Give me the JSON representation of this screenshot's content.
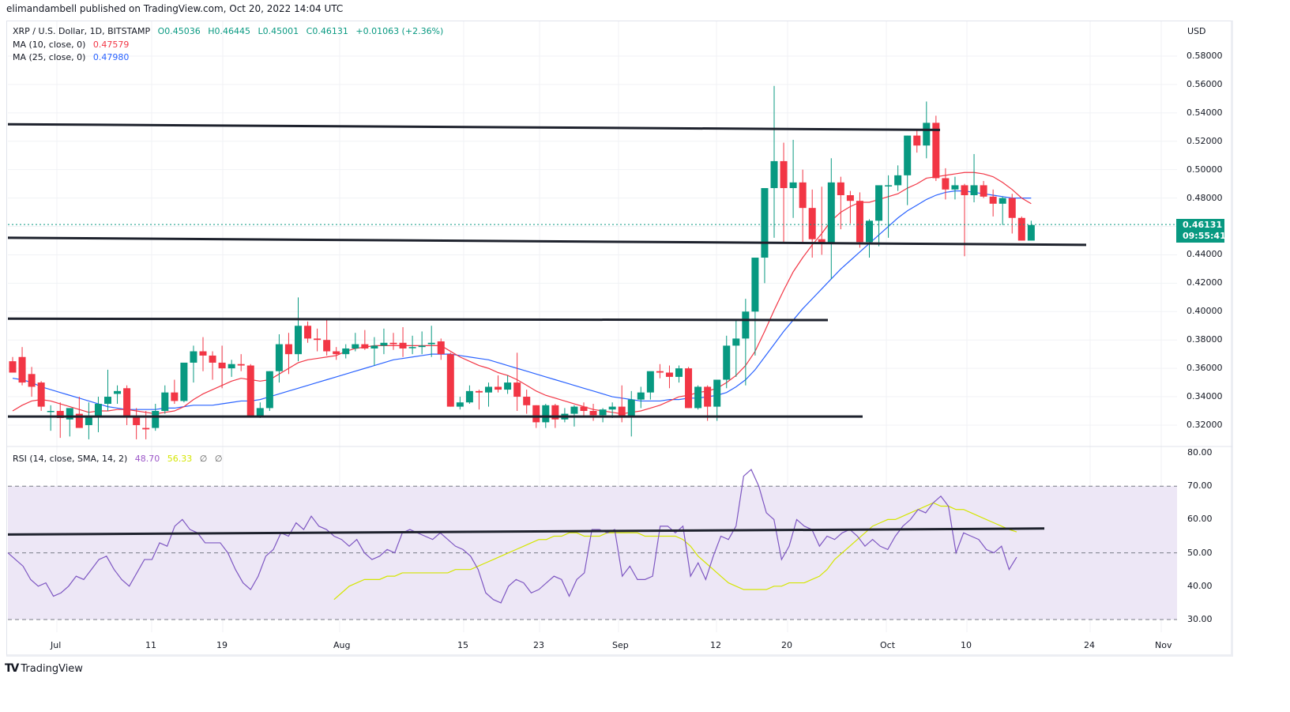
{
  "header": {
    "published": "elimandambell published on TradingView.com, Oct 20, 2022 14:04 UTC"
  },
  "legend": {
    "symbol": "XRP / U.S. Dollar, 1D, BITSTAMP",
    "open_label": "O",
    "open": "0.45036",
    "high_label": "H",
    "high": "0.46445",
    "low_label": "L",
    "low": "0.45001",
    "close_label": "C",
    "close": "0.46131",
    "change": "+0.01063 (+2.36%)",
    "ma10_label": "MA (10, close, 0)",
    "ma10_value": "0.47579",
    "ma25_label": "MA (25, close, 0)",
    "ma25_value": "0.47980",
    "rsi_label": "RSI (14, close, SMA, 14, 2)",
    "rsi_value": "48.70",
    "rsi_sma_value": "56.33",
    "rsi_extra1": "∅",
    "rsi_extra2": "∅"
  },
  "price_axis": {
    "currency": "USD",
    "ticks": [
      "0.58000",
      "0.56000",
      "0.54000",
      "0.52000",
      "0.50000",
      "0.48000",
      "0.44000",
      "0.42000",
      "0.40000",
      "0.38000",
      "0.36000",
      "0.34000",
      "0.32000"
    ],
    "last_price": "0.46131",
    "countdown": "09:55:41"
  },
  "rsi_axis": {
    "ticks": [
      "80.00",
      "70.00",
      "60.00",
      "50.00",
      "40.00",
      "30.00"
    ]
  },
  "time_axis": {
    "labels": [
      "Jul",
      "11",
      "19",
      "Aug",
      "15",
      "23",
      "Sep",
      "12",
      "20",
      "Oct",
      "10",
      "24",
      "Nov"
    ]
  },
  "footer": {
    "brand": "TradingView",
    "logo_mark": "TV"
  },
  "colors": {
    "up": "#089981",
    "down": "#f23645",
    "ma10": "#f23645",
    "ma25": "#2962ff",
    "rsi": "#7e57c2",
    "rsi_sma": "#d4e600",
    "rsi_band": "#ede7f6",
    "trendline": "#1e222d"
  },
  "chart_data": {
    "type": "candlestick",
    "title": "XRP / U.S. Dollar, 1D, BITSTAMP",
    "ylabel": "USD",
    "ylim": [
      0.31,
      0.59
    ],
    "x_start": "2022-06-26",
    "x_end": "2022-10-20",
    "ohlc": [
      [
        0.365,
        0.368,
        0.357,
        0.357
      ],
      [
        0.368,
        0.375,
        0.348,
        0.35
      ],
      [
        0.356,
        0.361,
        0.34,
        0.347
      ],
      [
        0.35,
        0.351,
        0.33,
        0.333
      ],
      [
        0.33,
        0.334,
        0.316,
        0.33
      ],
      [
        0.33,
        0.336,
        0.311,
        0.325
      ],
      [
        0.324,
        0.33,
        0.312,
        0.332
      ],
      [
        0.328,
        0.34,
        0.318,
        0.318
      ],
      [
        0.32,
        0.336,
        0.31,
        0.326
      ],
      [
        0.326,
        0.34,
        0.315,
        0.335
      ],
      [
        0.335,
        0.359,
        0.33,
        0.34
      ],
      [
        0.342,
        0.348,
        0.335,
        0.344
      ],
      [
        0.346,
        0.348,
        0.32,
        0.326
      ],
      [
        0.326,
        0.332,
        0.31,
        0.32
      ],
      [
        0.318,
        0.33,
        0.31,
        0.317
      ],
      [
        0.318,
        0.335,
        0.316,
        0.33
      ],
      [
        0.33,
        0.348,
        0.328,
        0.343
      ],
      [
        0.343,
        0.352,
        0.335,
        0.337
      ],
      [
        0.337,
        0.36,
        0.336,
        0.364
      ],
      [
        0.364,
        0.376,
        0.35,
        0.372
      ],
      [
        0.372,
        0.382,
        0.358,
        0.369
      ],
      [
        0.369,
        0.372,
        0.352,
        0.364
      ],
      [
        0.364,
        0.376,
        0.346,
        0.36
      ],
      [
        0.36,
        0.366,
        0.354,
        0.363
      ],
      [
        0.363,
        0.37,
        0.358,
        0.362
      ],
      [
        0.362,
        0.363,
        0.326,
        0.326
      ],
      [
        0.326,
        0.336,
        0.325,
        0.332
      ],
      [
        0.332,
        0.358,
        0.33,
        0.358
      ],
      [
        0.358,
        0.384,
        0.35,
        0.377
      ],
      [
        0.377,
        0.385,
        0.356,
        0.37
      ],
      [
        0.37,
        0.41,
        0.365,
        0.39
      ],
      [
        0.39,
        0.393,
        0.378,
        0.381
      ],
      [
        0.381,
        0.388,
        0.372,
        0.38
      ],
      [
        0.38,
        0.394,
        0.369,
        0.372
      ],
      [
        0.372,
        0.375,
        0.366,
        0.37
      ],
      [
        0.37,
        0.377,
        0.367,
        0.374
      ],
      [
        0.374,
        0.385,
        0.372,
        0.377
      ],
      [
        0.377,
        0.387,
        0.373,
        0.374
      ],
      [
        0.374,
        0.382,
        0.362,
        0.376
      ],
      [
        0.376,
        0.388,
        0.37,
        0.378
      ],
      [
        0.378,
        0.385,
        0.373,
        0.377
      ],
      [
        0.378,
        0.389,
        0.368,
        0.374
      ],
      [
        0.375,
        0.383,
        0.37,
        0.375
      ],
      [
        0.375,
        0.386,
        0.37,
        0.376
      ],
      [
        0.377,
        0.39,
        0.368,
        0.378
      ],
      [
        0.379,
        0.381,
        0.366,
        0.37
      ],
      [
        0.37,
        0.371,
        0.333,
        0.333
      ],
      [
        0.333,
        0.34,
        0.331,
        0.336
      ],
      [
        0.336,
        0.348,
        0.335,
        0.344
      ],
      [
        0.344,
        0.345,
        0.331,
        0.343
      ],
      [
        0.343,
        0.35,
        0.333,
        0.347
      ],
      [
        0.347,
        0.355,
        0.343,
        0.345
      ],
      [
        0.345,
        0.355,
        0.342,
        0.35
      ],
      [
        0.35,
        0.371,
        0.33,
        0.34
      ],
      [
        0.34,
        0.345,
        0.328,
        0.334
      ],
      [
        0.334,
        0.334,
        0.318,
        0.322
      ],
      [
        0.322,
        0.335,
        0.318,
        0.334
      ],
      [
        0.334,
        0.335,
        0.318,
        0.324
      ],
      [
        0.324,
        0.332,
        0.322,
        0.328
      ],
      [
        0.328,
        0.334,
        0.319,
        0.333
      ],
      [
        0.333,
        0.336,
        0.326,
        0.33
      ],
      [
        0.33,
        0.335,
        0.323,
        0.327
      ],
      [
        0.327,
        0.332,
        0.322,
        0.331
      ],
      [
        0.331,
        0.336,
        0.325,
        0.333
      ],
      [
        0.333,
        0.348,
        0.322,
        0.326
      ],
      [
        0.326,
        0.344,
        0.312,
        0.338
      ],
      [
        0.338,
        0.347,
        0.332,
        0.343
      ],
      [
        0.343,
        0.354,
        0.338,
        0.358
      ],
      [
        0.358,
        0.363,
        0.353,
        0.357
      ],
      [
        0.357,
        0.362,
        0.346,
        0.354
      ],
      [
        0.354,
        0.362,
        0.35,
        0.36
      ],
      [
        0.36,
        0.361,
        0.332,
        0.332
      ],
      [
        0.332,
        0.348,
        0.331,
        0.347
      ],
      [
        0.347,
        0.348,
        0.323,
        0.333
      ],
      [
        0.333,
        0.351,
        0.323,
        0.352
      ],
      [
        0.352,
        0.383,
        0.346,
        0.376
      ],
      [
        0.376,
        0.394,
        0.354,
        0.381
      ],
      [
        0.381,
        0.409,
        0.348,
        0.4
      ],
      [
        0.4,
        0.415,
        0.369,
        0.438
      ],
      [
        0.438,
        0.441,
        0.42,
        0.487
      ],
      [
        0.487,
        0.559,
        0.452,
        0.506
      ],
      [
        0.506,
        0.519,
        0.448,
        0.487
      ],
      [
        0.487,
        0.521,
        0.466,
        0.491
      ],
      [
        0.491,
        0.5,
        0.449,
        0.473
      ],
      [
        0.473,
        0.486,
        0.438,
        0.451
      ],
      [
        0.451,
        0.488,
        0.44,
        0.448
      ],
      [
        0.448,
        0.508,
        0.423,
        0.491
      ],
      [
        0.491,
        0.495,
        0.458,
        0.482
      ],
      [
        0.482,
        0.485,
        0.462,
        0.478
      ],
      [
        0.478,
        0.484,
        0.445,
        0.449
      ],
      [
        0.449,
        0.465,
        0.438,
        0.464
      ],
      [
        0.464,
        0.471,
        0.446,
        0.489
      ],
      [
        0.489,
        0.496,
        0.452,
        0.489
      ],
      [
        0.489,
        0.503,
        0.485,
        0.496
      ],
      [
        0.496,
        0.524,
        0.475,
        0.524
      ],
      [
        0.524,
        0.528,
        0.512,
        0.517
      ],
      [
        0.517,
        0.548,
        0.508,
        0.533
      ],
      [
        0.533,
        0.538,
        0.492,
        0.494
      ],
      [
        0.494,
        0.501,
        0.479,
        0.486
      ],
      [
        0.486,
        0.495,
        0.479,
        0.489
      ],
      [
        0.489,
        0.49,
        0.439,
        0.482
      ],
      [
        0.482,
        0.511,
        0.477,
        0.489
      ],
      [
        0.489,
        0.492,
        0.48,
        0.481
      ],
      [
        0.481,
        0.486,
        0.467,
        0.476
      ],
      [
        0.476,
        0.481,
        0.461,
        0.48
      ],
      [
        0.48,
        0.483,
        0.455,
        0.466
      ],
      [
        0.466,
        0.467,
        0.45,
        0.45
      ],
      [
        0.45,
        0.464,
        0.45,
        0.461
      ]
    ],
    "ma10": [
      0.33,
      0.334,
      0.337,
      0.338,
      0.337,
      0.335,
      0.333,
      0.331,
      0.329,
      0.33,
      0.33,
      0.331,
      0.331,
      0.33,
      0.329,
      0.328,
      0.329,
      0.33,
      0.333,
      0.338,
      0.342,
      0.345,
      0.348,
      0.351,
      0.353,
      0.352,
      0.351,
      0.352,
      0.356,
      0.36,
      0.364,
      0.366,
      0.367,
      0.368,
      0.369,
      0.372,
      0.374,
      0.375,
      0.376,
      0.376,
      0.376,
      0.376,
      0.376,
      0.376,
      0.376,
      0.376,
      0.372,
      0.368,
      0.365,
      0.362,
      0.36,
      0.357,
      0.355,
      0.352,
      0.348,
      0.344,
      0.341,
      0.339,
      0.337,
      0.335,
      0.333,
      0.331,
      0.33,
      0.329,
      0.328,
      0.329,
      0.33,
      0.332,
      0.334,
      0.337,
      0.34,
      0.341,
      0.343,
      0.344,
      0.346,
      0.35,
      0.355,
      0.362,
      0.372,
      0.386,
      0.401,
      0.415,
      0.428,
      0.438,
      0.447,
      0.455,
      0.464,
      0.47,
      0.474,
      0.477,
      0.477,
      0.479,
      0.481,
      0.483,
      0.487,
      0.49,
      0.494,
      0.495,
      0.496,
      0.497,
      0.498,
      0.498,
      0.497,
      0.495,
      0.491,
      0.486,
      0.48,
      0.476
    ],
    "ma25": [
      0.353,
      0.352,
      0.35,
      0.347,
      0.345,
      0.343,
      0.341,
      0.339,
      0.337,
      0.335,
      0.333,
      0.332,
      0.331,
      0.331,
      0.331,
      0.331,
      0.332,
      0.332,
      0.333,
      0.334,
      0.334,
      0.334,
      0.335,
      0.336,
      0.337,
      0.337,
      0.338,
      0.34,
      0.342,
      0.344,
      0.346,
      0.348,
      0.35,
      0.352,
      0.354,
      0.356,
      0.358,
      0.36,
      0.362,
      0.364,
      0.366,
      0.367,
      0.368,
      0.369,
      0.37,
      0.37,
      0.37,
      0.369,
      0.368,
      0.367,
      0.366,
      0.364,
      0.362,
      0.36,
      0.358,
      0.356,
      0.354,
      0.352,
      0.35,
      0.348,
      0.346,
      0.344,
      0.342,
      0.34,
      0.339,
      0.338,
      0.337,
      0.337,
      0.337,
      0.338,
      0.338,
      0.339,
      0.339,
      0.34,
      0.341,
      0.343,
      0.347,
      0.352,
      0.359,
      0.368,
      0.377,
      0.386,
      0.394,
      0.402,
      0.409,
      0.416,
      0.423,
      0.43,
      0.436,
      0.442,
      0.448,
      0.454,
      0.46,
      0.466,
      0.471,
      0.475,
      0.479,
      0.482,
      0.484,
      0.485,
      0.485,
      0.484,
      0.483,
      0.482,
      0.481,
      0.48,
      0.48,
      0.48
    ],
    "rsi": {
      "ylim": [
        30,
        80
      ],
      "bands": [
        30,
        50,
        70
      ],
      "rsi": [
        50,
        48,
        46,
        42,
        40,
        41,
        37,
        38,
        40,
        43,
        42,
        45,
        48,
        49,
        45,
        42,
        40,
        44,
        48,
        48,
        53,
        52,
        58,
        60,
        57,
        56,
        53,
        53,
        53,
        50,
        45,
        41,
        39,
        43,
        49,
        51,
        56,
        55,
        59,
        57,
        61,
        58,
        57,
        55,
        54,
        52,
        54,
        50,
        48,
        49,
        51,
        50,
        56,
        57,
        56,
        55,
        54,
        56,
        54,
        52,
        51,
        49,
        45,
        38,
        36,
        35,
        40,
        42,
        41,
        38,
        39,
        41,
        43,
        42,
        37,
        42,
        44,
        57,
        57,
        56,
        57,
        43,
        46,
        42,
        42,
        43,
        58,
        58,
        56,
        58,
        43,
        47,
        42,
        49,
        55,
        54,
        58,
        73,
        75,
        70,
        62,
        60,
        48,
        52,
        60,
        58,
        57,
        52,
        55,
        54,
        56,
        57,
        55,
        52,
        54,
        52,
        51,
        55,
        58,
        60,
        63,
        62,
        65,
        67,
        64,
        50,
        56,
        55,
        54,
        51,
        50,
        52,
        45,
        48.7
      ],
      "sma": [
        36,
        38,
        40,
        41,
        42,
        42,
        42,
        43,
        43,
        44,
        44,
        44,
        44,
        44,
        44,
        44,
        45,
        45,
        45,
        46,
        47,
        48,
        49,
        50,
        51,
        52,
        53,
        54,
        54,
        55,
        55,
        56,
        56,
        55,
        55,
        55,
        56,
        56,
        56,
        56,
        56,
        55,
        55,
        55,
        55,
        55,
        54,
        52,
        49,
        47,
        45,
        43,
        41,
        40,
        39,
        39,
        39,
        39,
        40,
        40,
        41,
        41,
        41,
        42,
        43,
        45,
        48,
        50,
        52,
        54,
        56,
        58,
        59,
        60,
        60,
        61,
        62,
        63,
        64,
        65,
        64,
        64,
        63,
        63,
        62,
        61,
        60,
        59,
        58,
        57,
        56.3
      ]
    },
    "trendlines": [
      {
        "from": [
          0,
          0.532
        ],
        "to": [
          1190,
          0.528
        ]
      },
      {
        "from": [
          0,
          0.452
        ],
        "to": [
          1375,
          0.447
        ]
      },
      {
        "from": [
          0,
          0.395
        ],
        "to": [
          1048,
          0.394
        ]
      },
      {
        "from": [
          0,
          0.326
        ],
        "to": [
          1092,
          0.326
        ]
      },
      {
        "rsi": true,
        "from": [
          0,
          55.5
        ],
        "to": [
          1322,
          57.3
        ]
      }
    ]
  }
}
